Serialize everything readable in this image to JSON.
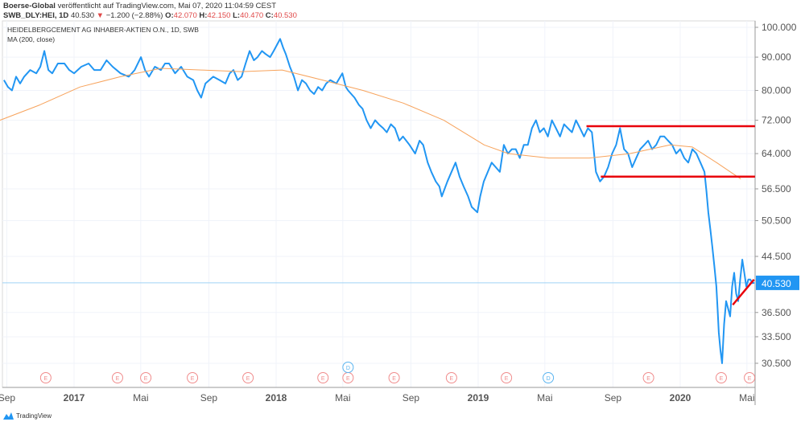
{
  "header": {
    "publisher": "Boerse-Global",
    "published_text": "veröffentlicht auf TradingView.com, Mai 07, 2020 11:04:59 CEST",
    "symbol": "SWB_DLY:HEI, 1D",
    "last": "40.530",
    "change": "−1.200 (−2.88%)",
    "o_label": "O:",
    "o": "42.070",
    "h_label": "H:",
    "h": "42.150",
    "l_label": "L:",
    "l": "40.470",
    "c_label": "C:",
    "c": "40.530"
  },
  "footer": {
    "brand": "TradingView"
  },
  "chart_data": {
    "type": "line",
    "title": "HEIDELBERGCEMENT AG INHABER-AKTIEN O.N., 1D, SWB",
    "indicator_label": "MA (200, close)",
    "yscale": "log",
    "ylim": [
      28.5,
      104
    ],
    "xlim": [
      2016.63,
      2020.4
    ],
    "y_ticks": [
      "100.000",
      "90.000",
      "80.000",
      "72.000",
      "64.000",
      "56.500",
      "50.500",
      "44.500",
      "36.500",
      "33.500",
      "30.500"
    ],
    "x_ticks": [
      {
        "t": 2016.667,
        "label": "Sep"
      },
      {
        "t": 2017.0,
        "label": "2017"
      },
      {
        "t": 2017.33,
        "label": "Mai"
      },
      {
        "t": 2017.667,
        "label": "Sep"
      },
      {
        "t": 2018.0,
        "label": "2018"
      },
      {
        "t": 2018.33,
        "label": "Mai"
      },
      {
        "t": 2018.667,
        "label": "Sep"
      },
      {
        "t": 2019.0,
        "label": "2019"
      },
      {
        "t": 2019.33,
        "label": "Mai"
      },
      {
        "t": 2019.667,
        "label": "Sep"
      },
      {
        "t": 2020.0,
        "label": "2020"
      },
      {
        "t": 2020.33,
        "label": "Mai"
      }
    ],
    "last_price": 40.53,
    "last_price_label": "40.530",
    "colors": {
      "price": "#2196f3",
      "ma": "#f7a35c",
      "lines": "#e8000b",
      "last": "#2196f3",
      "earnings": "#f08c8c",
      "dividend": "#5ab4f0"
    },
    "series": [
      {
        "name": "Price",
        "points": [
          [
            2016.653,
            83
          ],
          [
            2016.673,
            81
          ],
          [
            2016.693,
            80
          ],
          [
            2016.713,
            84
          ],
          [
            2016.733,
            82
          ],
          [
            2016.753,
            84
          ],
          [
            2016.783,
            86
          ],
          [
            2016.813,
            85
          ],
          [
            2016.833,
            87
          ],
          [
            2016.853,
            92
          ],
          [
            2016.873,
            86
          ],
          [
            2016.892,
            85
          ],
          [
            2016.92,
            88
          ],
          [
            2016.952,
            88
          ],
          [
            2016.976,
            86
          ],
          [
            2017.0,
            85
          ],
          [
            2017.036,
            87
          ],
          [
            2017.072,
            88
          ],
          [
            2017.1,
            86
          ],
          [
            2017.131,
            86
          ],
          [
            2017.161,
            89
          ],
          [
            2017.191,
            87
          ],
          [
            2017.23,
            85
          ],
          [
            2017.271,
            84
          ],
          [
            2017.3,
            86
          ],
          [
            2017.331,
            90
          ],
          [
            2017.351,
            86
          ],
          [
            2017.371,
            84
          ],
          [
            2017.4,
            87
          ],
          [
            2017.43,
            86
          ],
          [
            2017.45,
            88
          ],
          [
            2017.47,
            88
          ],
          [
            2017.5,
            85
          ],
          [
            2017.53,
            87
          ],
          [
            2017.56,
            84
          ],
          [
            2017.59,
            83
          ],
          [
            2017.61,
            80
          ],
          [
            2017.629,
            78
          ],
          [
            2017.65,
            82
          ],
          [
            2017.689,
            84
          ],
          [
            2017.72,
            83
          ],
          [
            2017.749,
            82
          ],
          [
            2017.77,
            85
          ],
          [
            2017.789,
            86
          ],
          [
            2017.81,
            83
          ],
          [
            2017.829,
            84
          ],
          [
            2017.849,
            88
          ],
          [
            2017.869,
            92
          ],
          [
            2017.89,
            89
          ],
          [
            2017.908,
            90
          ],
          [
            2017.93,
            92
          ],
          [
            2017.948,
            91
          ],
          [
            2017.97,
            90
          ],
          [
            2017.988,
            92
          ],
          [
            2018.02,
            96
          ],
          [
            2018.035,
            93
          ],
          [
            2018.048,
            91
          ],
          [
            2018.068,
            87
          ],
          [
            2018.088,
            84
          ],
          [
            2018.108,
            80
          ],
          [
            2018.128,
            83
          ],
          [
            2018.148,
            82
          ],
          [
            2018.168,
            80
          ],
          [
            2018.188,
            79
          ],
          [
            2018.208,
            81
          ],
          [
            2018.228,
            80
          ],
          [
            2018.248,
            82
          ],
          [
            2018.268,
            83
          ],
          [
            2018.298,
            82
          ],
          [
            2018.328,
            85
          ],
          [
            2018.345,
            81
          ],
          [
            2018.356,
            80
          ],
          [
            2018.388,
            78
          ],
          [
            2018.41,
            76
          ],
          [
            2018.428,
            75
          ],
          [
            2018.448,
            72
          ],
          [
            2018.468,
            70
          ],
          [
            2018.49,
            72
          ],
          [
            2018.508,
            71
          ],
          [
            2018.53,
            70
          ],
          [
            2018.548,
            69
          ],
          [
            2018.568,
            71
          ],
          [
            2018.588,
            70
          ],
          [
            2018.61,
            67
          ],
          [
            2018.628,
            68
          ],
          [
            2018.66,
            66
          ],
          [
            2018.688,
            64
          ],
          [
            2018.71,
            67
          ],
          [
            2018.728,
            66
          ],
          [
            2018.75,
            62
          ],
          [
            2018.768,
            60
          ],
          [
            2018.79,
            58
          ],
          [
            2018.808,
            57
          ],
          [
            2018.82,
            55
          ],
          [
            2018.848,
            58
          ],
          [
            2018.868,
            60
          ],
          [
            2018.888,
            62
          ],
          [
            2018.908,
            59
          ],
          [
            2018.928,
            57
          ],
          [
            2018.95,
            55
          ],
          [
            2018.968,
            53
          ],
          [
            2018.996,
            52
          ],
          [
            2019.01,
            55
          ],
          [
            2019.028,
            58
          ],
          [
            2019.048,
            60
          ],
          [
            2019.067,
            62
          ],
          [
            2019.087,
            61
          ],
          [
            2019.107,
            60
          ],
          [
            2019.127,
            66
          ],
          [
            2019.147,
            64
          ],
          [
            2019.167,
            65
          ],
          [
            2019.186,
            65
          ],
          [
            2019.206,
            63
          ],
          [
            2019.226,
            66
          ],
          [
            2019.246,
            66
          ],
          [
            2019.266,
            70
          ],
          [
            2019.286,
            72
          ],
          [
            2019.305,
            69
          ],
          [
            2019.325,
            70
          ],
          [
            2019.345,
            68
          ],
          [
            2019.365,
            72
          ],
          [
            2019.385,
            70
          ],
          [
            2019.405,
            68
          ],
          [
            2019.425,
            71
          ],
          [
            2019.444,
            70
          ],
          [
            2019.464,
            69
          ],
          [
            2019.484,
            72
          ],
          [
            2019.504,
            70
          ],
          [
            2019.524,
            68
          ],
          [
            2019.543,
            70
          ],
          [
            2019.563,
            69
          ],
          [
            2019.583,
            60
          ],
          [
            2019.603,
            58
          ],
          [
            2019.623,
            59
          ],
          [
            2019.643,
            61
          ],
          [
            2019.663,
            64
          ],
          [
            2019.683,
            66
          ],
          [
            2019.702,
            70
          ],
          [
            2019.722,
            65
          ],
          [
            2019.742,
            64
          ],
          [
            2019.762,
            61
          ],
          [
            2019.782,
            63
          ],
          [
            2019.802,
            65
          ],
          [
            2019.822,
            66
          ],
          [
            2019.841,
            67
          ],
          [
            2019.861,
            65
          ],
          [
            2019.881,
            66
          ],
          [
            2019.901,
            68
          ],
          [
            2019.921,
            68
          ],
          [
            2019.94,
            67
          ],
          [
            2019.96,
            66
          ],
          [
            2019.98,
            64
          ],
          [
            2020.0,
            65
          ],
          [
            2020.02,
            63
          ],
          [
            2020.04,
            62
          ],
          [
            2020.06,
            65
          ],
          [
            2020.08,
            64
          ],
          [
            2020.1,
            62
          ],
          [
            2020.12,
            60
          ],
          [
            2020.13,
            56
          ],
          [
            2020.139,
            52
          ],
          [
            2020.149,
            49
          ],
          [
            2020.159,
            46
          ],
          [
            2020.169,
            43
          ],
          [
            2020.179,
            40
          ],
          [
            2020.185,
            37
          ],
          [
            2020.191,
            34
          ],
          [
            2020.199,
            32
          ],
          [
            2020.207,
            30.5
          ],
          [
            2020.217,
            35
          ],
          [
            2020.227,
            38
          ],
          [
            2020.237,
            37
          ],
          [
            2020.247,
            36
          ],
          [
            2020.257,
            40
          ],
          [
            2020.267,
            42
          ],
          [
            2020.277,
            39
          ],
          [
            2020.287,
            38
          ],
          [
            2020.297,
            41
          ],
          [
            2020.307,
            44
          ],
          [
            2020.317,
            42
          ],
          [
            2020.327,
            40
          ],
          [
            2020.337,
            41
          ],
          [
            2020.347,
            41
          ],
          [
            2020.357,
            40.5
          ],
          [
            2020.367,
            40.53
          ]
        ]
      },
      {
        "name": "MA (200, close)",
        "points": [
          [
            2016.633,
            72
          ],
          [
            2016.83,
            76
          ],
          [
            2017.03,
            81
          ],
          [
            2017.23,
            84
          ],
          [
            2017.43,
            86.5
          ],
          [
            2017.63,
            86
          ],
          [
            2017.83,
            85.5
          ],
          [
            2018.03,
            86
          ],
          [
            2018.23,
            83
          ],
          [
            2018.43,
            80
          ],
          [
            2018.63,
            76.5
          ],
          [
            2018.83,
            72
          ],
          [
            2019.03,
            66
          ],
          [
            2019.15,
            64
          ],
          [
            2019.35,
            63
          ],
          [
            2019.55,
            63
          ],
          [
            2019.75,
            64
          ],
          [
            2019.95,
            66
          ],
          [
            2020.06,
            65.5
          ],
          [
            2020.18,
            62
          ],
          [
            2020.3,
            58.5
          ]
        ]
      }
    ],
    "annotations": {
      "lines": [
        {
          "t1": 2019.536,
          "p1": 70.5,
          "t2": 2020.37,
          "p2": 70.5
        },
        {
          "t1": 2019.607,
          "p1": 59,
          "t2": 2020.37,
          "p2": 59
        },
        {
          "t1": 2020.26,
          "p1": 37.5,
          "t2": 2020.365,
          "p2": 41
        }
      ],
      "earnings_label": "E",
      "dividend_label": "D",
      "earnings": [
        2016.86,
        2017.215,
        2017.355,
        2017.586,
        2017.861,
        2018.232,
        2018.356,
        2018.584,
        2018.868,
        2019.14,
        2019.843,
        2020.203,
        2020.343
      ],
      "dividends": [
        2018.356,
        2019.347
      ]
    }
  }
}
